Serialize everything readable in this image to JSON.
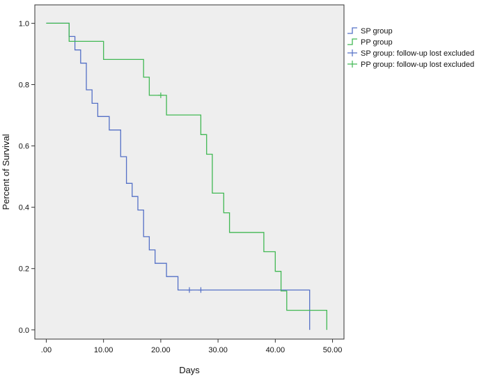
{
  "chart_data": {
    "type": "line",
    "subtype": "kaplan-meier step",
    "xlabel": "Days",
    "ylabel": "Percent of Survival",
    "xlim": [
      -2,
      52
    ],
    "ylim": [
      -0.03,
      1.06
    ],
    "x_ticks": [
      0,
      10,
      20,
      30,
      40,
      50
    ],
    "x_tick_labels": [
      ".00",
      "10.00",
      "20.00",
      "30.00",
      "40.00",
      "50.00"
    ],
    "y_ticks": [
      0,
      0.2,
      0.4,
      0.6,
      0.8,
      1.0
    ],
    "y_tick_labels": [
      "0.0",
      "0.2",
      "0.4",
      "0.6",
      "0.8",
      "1.0"
    ],
    "grid": false,
    "plot_background": "#eeeeee",
    "legend_position": "right",
    "series": [
      {
        "name": "SP group",
        "color": "#5470c6",
        "points": [
          [
            0,
            1.0
          ],
          [
            4,
            1.0
          ],
          [
            4,
            0.957
          ],
          [
            5,
            0.957
          ],
          [
            5,
            0.913
          ],
          [
            6,
            0.913
          ],
          [
            6,
            0.87
          ],
          [
            7,
            0.87
          ],
          [
            7,
            0.783
          ],
          [
            8,
            0.783
          ],
          [
            8,
            0.739
          ],
          [
            9,
            0.739
          ],
          [
            9,
            0.696
          ],
          [
            11,
            0.696
          ],
          [
            11,
            0.652
          ],
          [
            13,
            0.652
          ],
          [
            13,
            0.565
          ],
          [
            14,
            0.565
          ],
          [
            14,
            0.478
          ],
          [
            15,
            0.478
          ],
          [
            15,
            0.435
          ],
          [
            16,
            0.435
          ],
          [
            16,
            0.391
          ],
          [
            17,
            0.391
          ],
          [
            17,
            0.304
          ],
          [
            18,
            0.304
          ],
          [
            18,
            0.261
          ],
          [
            19,
            0.261
          ],
          [
            19,
            0.217
          ],
          [
            21,
            0.217
          ],
          [
            21,
            0.174
          ],
          [
            23,
            0.174
          ],
          [
            23,
            0.13
          ],
          [
            46,
            0.13
          ],
          [
            46,
            0.0
          ]
        ],
        "censored_x": [
          25,
          27
        ],
        "censored_y": [
          0.13,
          0.13
        ]
      },
      {
        "name": "PP group",
        "color": "#41b853",
        "points": [
          [
            0,
            1.0
          ],
          [
            4,
            1.0
          ],
          [
            4,
            0.941
          ],
          [
            10,
            0.941
          ],
          [
            10,
            0.882
          ],
          [
            17,
            0.882
          ],
          [
            17,
            0.824
          ],
          [
            18,
            0.824
          ],
          [
            18,
            0.765
          ],
          [
            21,
            0.765
          ],
          [
            21,
            0.701
          ],
          [
            27,
            0.701
          ],
          [
            27,
            0.637
          ],
          [
            28,
            0.637
          ],
          [
            28,
            0.573
          ],
          [
            29,
            0.573
          ],
          [
            29,
            0.446
          ],
          [
            31,
            0.446
          ],
          [
            31,
            0.382
          ],
          [
            32,
            0.382
          ],
          [
            32,
            0.318
          ],
          [
            38,
            0.318
          ],
          [
            38,
            0.255
          ],
          [
            40,
            0.255
          ],
          [
            40,
            0.191
          ],
          [
            41,
            0.191
          ],
          [
            41,
            0.127
          ],
          [
            42,
            0.127
          ],
          [
            42,
            0.064
          ],
          [
            49,
            0.064
          ],
          [
            49,
            0.0
          ]
        ],
        "censored_x": [
          20
        ],
        "censored_y": [
          0.765
        ]
      }
    ],
    "legend": [
      {
        "label": "SP group",
        "kind": "step",
        "color": "#5470c6"
      },
      {
        "label": "PP group",
        "kind": "step",
        "color": "#41b853"
      },
      {
        "label": "SP group: follow-up lost excluded",
        "kind": "censor",
        "color": "#5470c6"
      },
      {
        "label": "PP group: follow-up lost excluded",
        "kind": "censor",
        "color": "#41b853"
      }
    ]
  }
}
